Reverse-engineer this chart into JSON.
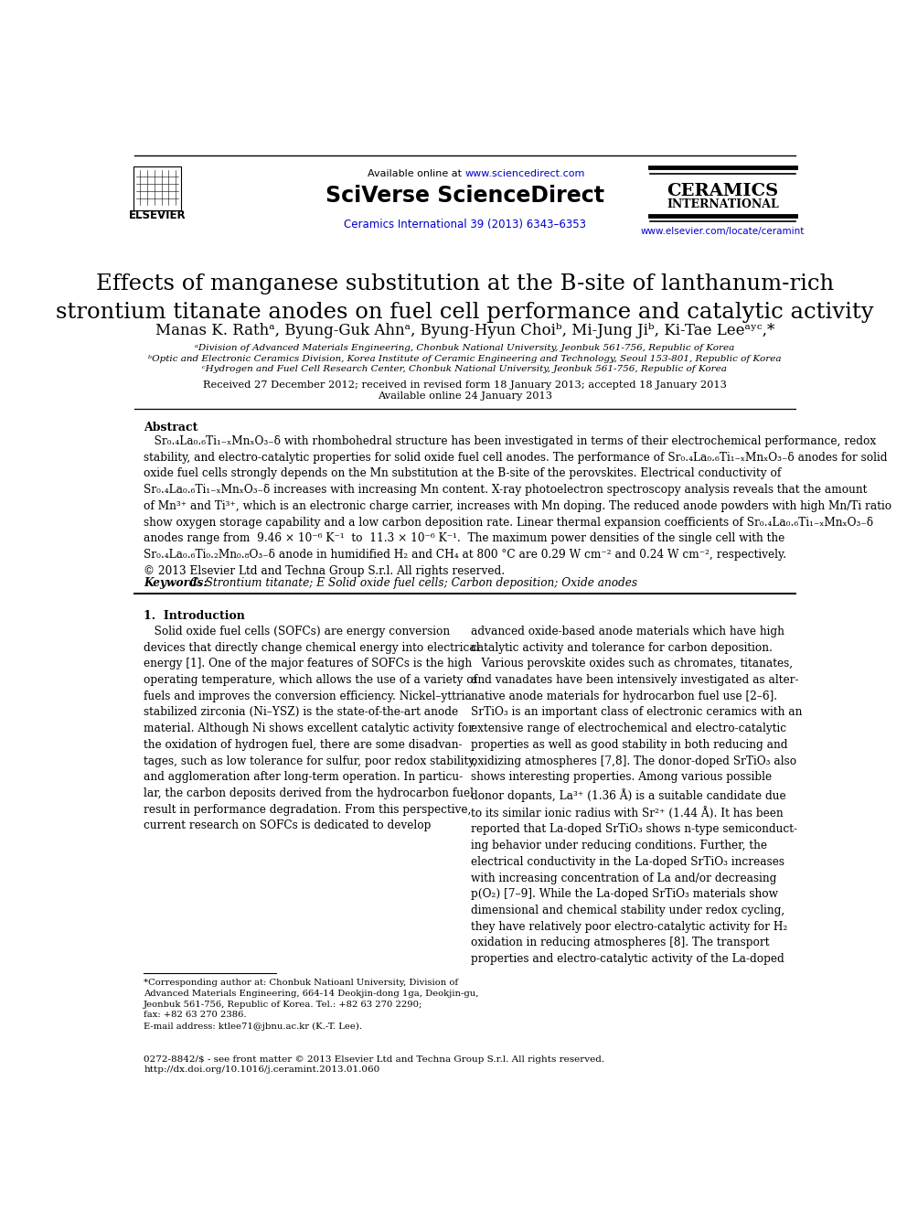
{
  "bg_color": "#ffffff",
  "text_color": "#000000",
  "blue_color": "#0000cc",
  "header": {
    "available_text": "Available online at ",
    "url_text": "www.sciencedirect.com",
    "sciverse_text": "SciVerse ScienceDirect",
    "journal_text": "Ceramics International 39 (2013) 6343–6353",
    "ceramics_line1": "CERAMICS",
    "ceramics_line2": "INTERNATIONAL",
    "elsevier_url": "www.elsevier.com/locate/ceramint"
  },
  "title": "Effects of manganese substitution at the B-site of lanthanum-rich\nstrontium titanate anodes on fuel cell performance and catalytic activity",
  "affil_a": "ᵃDivision of Advanced Materials Engineering, Chonbuk National University, Jeonbuk 561-756, Republic of Korea",
  "affil_b": "ᵇOptic and Electronic Ceramics Division, Korea Institute of Ceramic Engineering and Technology, Seoul 153-801, Republic of Korea",
  "affil_c": "ᶜHydrogen and Fuel Cell Research Center, Chonbuk National University, Jeonbuk 561-756, Republic of Korea",
  "received": "Received 27 December 2012; received in revised form 18 January 2013; accepted 18 January 2013",
  "available_online": "Available online 24 January 2013",
  "abstract_title": "Abstract",
  "keywords_label": "Keywords: ",
  "keywords_text": "C. Strontium titanate; E Solid oxide fuel cells; Carbon deposition; Oxide anodes",
  "intro_title": "1.  Introduction",
  "footnote_star": "*Corresponding author at: Chonbuk Natioanl University, Division of\nAdvanced Materials Engineering, 664-14 Deokjin-dong 1ga, Deokjin-gu,\nJeonbuk 561-756, Republic of Korea. Tel.: +82 63 270 2290;\nfax: +82 63 270 2386.\nE-mail address: ktlee71@jbnu.ac.kr (K.-T. Lee).",
  "footer_line1": "0272-8842/$ - see front matter © 2013 Elsevier Ltd and Techna Group S.r.l. All rights reserved.",
  "footer_line2": "http://dx.doi.org/10.1016/j.ceramint.2013.01.060"
}
